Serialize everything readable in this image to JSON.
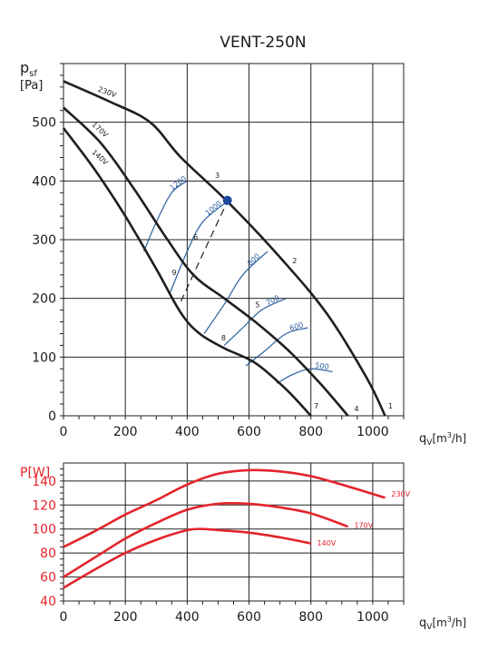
{
  "chart_data": [
    {
      "type": "line",
      "title": "VENT-250N",
      "ylabel_main": "p",
      "ylabel_sub": "sf",
      "ylabel_unit": "[Pa]",
      "xlabel_main": "q",
      "xlabel_sub": "V",
      "xlabel_unit_pre": "[m",
      "xlabel_unit_sup": "3",
      "xlabel_unit_post": "/h]",
      "xlim": [
        0,
        1100
      ],
      "ylim": [
        0,
        600
      ],
      "xticks": [
        0,
        200,
        400,
        600,
        800,
        1000
      ],
      "yticks": [
        0,
        100,
        200,
        300,
        400,
        500
      ],
      "grid": true,
      "series": [
        {
          "name": "230V",
          "x": [
            0,
            150,
            280,
            380,
            530,
            700,
            850,
            980,
            1040
          ],
          "y": [
            570,
            535,
            500,
            440,
            365,
            270,
            175,
            65,
            0
          ]
        },
        {
          "name": "170V",
          "x": [
            0,
            120,
            230,
            330,
            420,
            520,
            620,
            730,
            830,
            920
          ],
          "y": [
            525,
            465,
            385,
            305,
            240,
            200,
            160,
            110,
            55,
            0
          ]
        },
        {
          "name": "140V",
          "x": [
            0,
            100,
            200,
            300,
            380,
            440,
            520,
            620,
            720,
            800
          ],
          "y": [
            490,
            420,
            340,
            250,
            175,
            140,
            115,
            90,
            45,
            0
          ]
        }
      ],
      "curve_labels": [
        {
          "text": "230V",
          "x": 110,
          "y": 553
        },
        {
          "text": "170V",
          "x": 90,
          "y": 495
        },
        {
          "text": "140V",
          "x": 90,
          "y": 448
        }
      ],
      "efficiency_lines": [
        {
          "label": "1200",
          "x": [
            260,
            300,
            350,
            400
          ],
          "y": [
            280,
            330,
            380,
            400
          ]
        },
        {
          "label": "1000",
          "x": [
            345,
            400,
            450,
            530
          ],
          "y": [
            210,
            280,
            330,
            365
          ]
        },
        {
          "label": "800",
          "x": [
            455,
            520,
            580,
            660
          ],
          "y": [
            140,
            190,
            240,
            280
          ]
        },
        {
          "label": "700",
          "x": [
            520,
            580,
            640,
            720
          ],
          "y": [
            120,
            150,
            180,
            200
          ]
        },
        {
          "label": "600",
          "x": [
            590,
            650,
            720,
            790
          ],
          "y": [
            85,
            110,
            140,
            150
          ]
        },
        {
          "label": "500",
          "x": [
            690,
            740,
            800,
            870
          ],
          "y": [
            55,
            70,
            80,
            75
          ]
        }
      ],
      "dashed_line": {
        "x": [
          380,
          450,
          530
        ],
        "y": [
          195,
          275,
          365
        ]
      },
      "operating_point": {
        "x": 530,
        "y": 367,
        "color": "#1a4aa0"
      },
      "point_labels": [
        {
          "text": "1",
          "x": 1050,
          "y": 12
        },
        {
          "text": "2",
          "x": 740,
          "y": 260
        },
        {
          "text": "3",
          "x": 490,
          "y": 405
        },
        {
          "text": "4",
          "x": 940,
          "y": 8
        },
        {
          "text": "5",
          "x": 620,
          "y": 185
        },
        {
          "text": "6",
          "x": 420,
          "y": 300
        },
        {
          "text": "7",
          "x": 810,
          "y": 12
        },
        {
          "text": "8",
          "x": 510,
          "y": 128
        },
        {
          "text": "9",
          "x": 350,
          "y": 240
        }
      ],
      "line_color": "#1f1f1f",
      "eff_color": "#2a5f9e"
    },
    {
      "type": "line",
      "ylabel": "P[W]",
      "xlabel_main": "q",
      "xlabel_sub": "V",
      "xlabel_unit_pre": "[m",
      "xlabel_unit_sup": "3",
      "xlabel_unit_post": "/h]",
      "xlim": [
        0,
        1100
      ],
      "ylim": [
        40,
        155
      ],
      "xticks": [
        0,
        200,
        400,
        600,
        800,
        1000
      ],
      "yticks": [
        40,
        60,
        80,
        100,
        120,
        140
      ],
      "grid": true,
      "series": [
        {
          "name": "230V",
          "x": [
            0,
            100,
            200,
            300,
            400,
            500,
            600,
            700,
            800,
            900,
            1040
          ],
          "y": [
            85,
            98,
            112,
            124,
            137,
            146,
            149,
            148,
            144,
            137,
            126
          ]
        },
        {
          "name": "170V",
          "x": [
            0,
            100,
            200,
            300,
            400,
            500,
            600,
            700,
            800,
            920
          ],
          "y": [
            60,
            76,
            92,
            105,
            116,
            121,
            121,
            118,
            113,
            102
          ]
        },
        {
          "name": "140V",
          "x": [
            0,
            100,
            200,
            300,
            400,
            450,
            500,
            600,
            700,
            800
          ],
          "y": [
            51,
            66,
            80,
            91,
            99,
            100,
            99,
            97,
            93,
            88
          ]
        }
      ],
      "curve_labels": [
        {
          "text": "230V",
          "x": 1060,
          "y": 127
        },
        {
          "text": "170V",
          "x": 940,
          "y": 101
        },
        {
          "text": "140V",
          "x": 820,
          "y": 86
        }
      ],
      "line_color": "#e3242b"
    }
  ]
}
